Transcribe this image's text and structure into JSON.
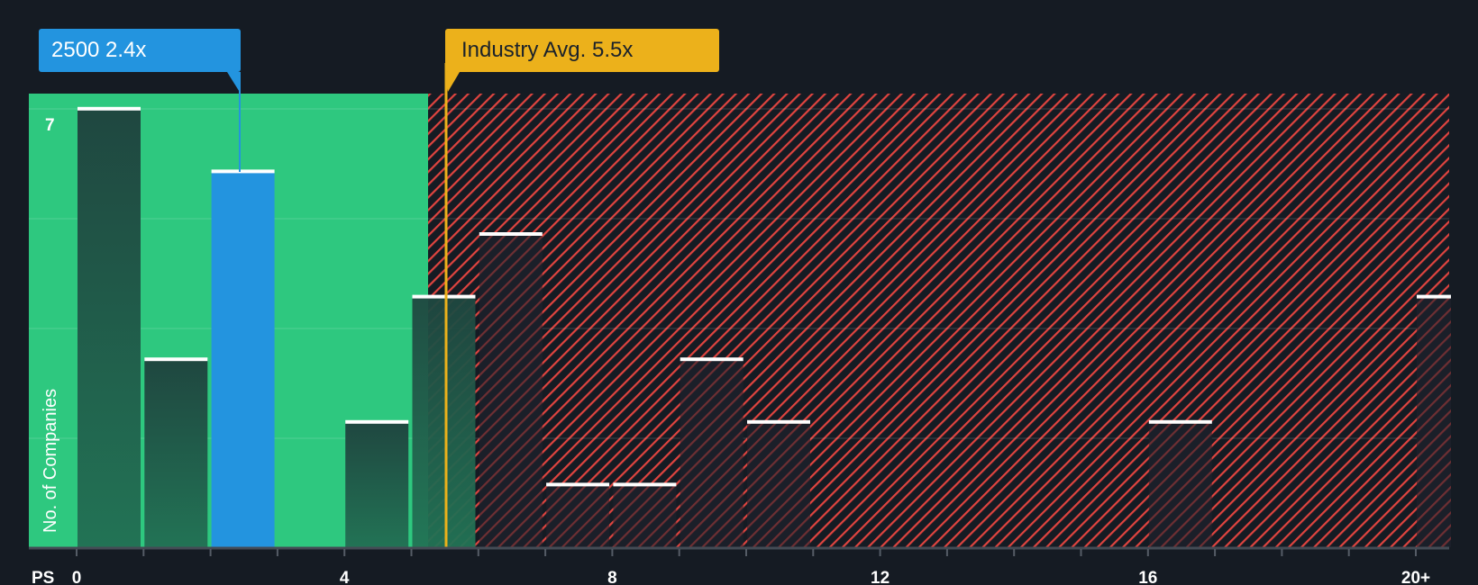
{
  "chart_data": {
    "type": "bar",
    "title": "",
    "xlabel": "PS",
    "ylabel": "No. of Companies",
    "x_tick_labels": [
      "0",
      "4",
      "8",
      "12",
      "16",
      "20+"
    ],
    "y_tick_labels": [
      "7"
    ],
    "ylim": [
      0,
      7
    ],
    "grid": true,
    "bins": [
      {
        "range": "0-1",
        "count": 7
      },
      {
        "range": "1-2",
        "count": 3
      },
      {
        "range": "2-3",
        "count": 6,
        "highlight": true
      },
      {
        "range": "3-4",
        "count": 0
      },
      {
        "range": "4-5",
        "count": 2
      },
      {
        "range": "5-6",
        "count": 4
      },
      {
        "range": "6-7",
        "count": 5
      },
      {
        "range": "7-8",
        "count": 1
      },
      {
        "range": "8-9",
        "count": 1
      },
      {
        "range": "9-10",
        "count": 3
      },
      {
        "range": "10-11",
        "count": 2
      },
      {
        "range": "11-16",
        "count": 0
      },
      {
        "range": "16-17",
        "count": 2
      },
      {
        "range": "17-20",
        "count": 0
      },
      {
        "range": "20+",
        "count": 4
      }
    ],
    "categories": [
      "0-1",
      "1-2",
      "2-3",
      "3-4",
      "4-5",
      "5-6",
      "6-7",
      "7-8",
      "8-9",
      "9-10",
      "10-11",
      "16-17",
      "20+"
    ],
    "values": [
      7,
      3,
      6,
      0,
      2,
      4,
      5,
      1,
      1,
      3,
      2,
      2,
      4
    ],
    "annotations": [
      {
        "label": "2500 2.4x",
        "x": 2.4,
        "color": "#2394df"
      },
      {
        "label": "Industry Avg. 5.5x",
        "x": 5.5,
        "color": "#ecb11b"
      }
    ],
    "regions": [
      {
        "from": 0,
        "to": 5.3,
        "color": "#2ec87f",
        "meaning": "undervalued"
      },
      {
        "from": 5.3,
        "to": 20.5,
        "pattern": "red-hatched",
        "meaning": "overvalued"
      }
    ]
  },
  "callouts": {
    "company": "2500 2.4x",
    "industry": "Industry Avg. 5.5x"
  },
  "axis": {
    "x_title": "PS",
    "y_title": "No. of Companies",
    "y_max_label": "7",
    "x_ticks": [
      "0",
      "4",
      "8",
      "12",
      "16",
      "20+"
    ]
  },
  "colors": {
    "background": "#151b23",
    "green_zone": "#2ec87f",
    "company_bar": "#2394df",
    "industry_line": "#ecb11b",
    "hatch": "#e0443f"
  }
}
